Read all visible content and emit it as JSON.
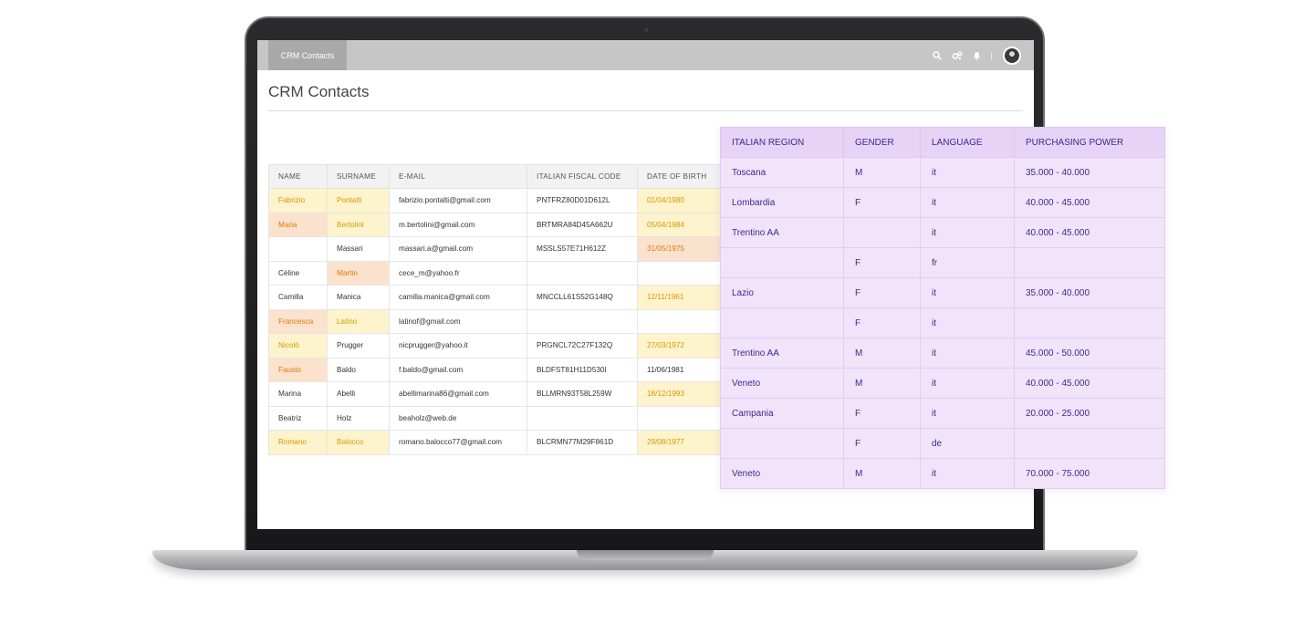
{
  "app": {
    "tab_label": "CRM Contacts",
    "page_title": "CRM Contacts",
    "icons": [
      "search-icon",
      "gears-icon",
      "bell-icon"
    ],
    "separator": "|"
  },
  "contacts": {
    "headers": [
      "NAME",
      "SURNAME",
      "E-MAIL",
      "ITALIAN FISCAL CODE",
      "DATE OF BIRTH"
    ],
    "rows": [
      {
        "name": "Fabrizio",
        "surname": "Pontalti",
        "email": "fabrizio.pontalti@gmail.com",
        "fiscal": "PNTFRZ80D01D612L",
        "dob": "01/04/1980",
        "hl": {
          "name": "y",
          "surname": "y",
          "dob": "y"
        }
      },
      {
        "name": "Maria",
        "surname": "Bertolini",
        "email": "m.bertolini@gmail.com",
        "fiscal": "BRTMRA84D45A662U",
        "dob": "05/04/1984",
        "hl": {
          "name": "o",
          "surname": "y",
          "dob": "y"
        }
      },
      {
        "name": "",
        "surname": "Massari",
        "email": "massari.a@gmail.com",
        "fiscal": "MSSLS57E71H612Z",
        "dob": "31/05/1975",
        "hl": {
          "dob": "o"
        }
      },
      {
        "name": "Céline",
        "surname": "Martin",
        "email": "cece_m@yahoo.fr",
        "fiscal": "",
        "dob": "",
        "hl": {
          "surname": "o"
        }
      },
      {
        "name": "Camilla",
        "surname": "Manica",
        "email": "camilla.manica@gmail.com",
        "fiscal": "MNCCLL61S52G148Q",
        "dob": "12/11/1961",
        "hl": {
          "dob": "y"
        }
      },
      {
        "name": "Francesca",
        "surname": "Latino",
        "email": "latinof@gmail.com",
        "fiscal": "",
        "dob": "",
        "hl": {
          "name": "o",
          "surname": "y"
        }
      },
      {
        "name": "Nicolò",
        "surname": "Prugger",
        "email": "nicprugger@yahoo.it",
        "fiscal": "PRGNCL72C27F132Q",
        "dob": "27/03/1972",
        "hl": {
          "name": "y",
          "dob": "y"
        }
      },
      {
        "name": "Fausto",
        "surname": "Baldo",
        "email": "f.baldo@gmail.com",
        "fiscal": "BLDFST81H11D530I",
        "dob": "11/06/1981",
        "hl": {
          "name": "o"
        }
      },
      {
        "name": "Marina",
        "surname": "Abelli",
        "email": "abellimarina86@gmail.com",
        "fiscal": "BLLMRN93T58L259W",
        "dob": "18/12/1993",
        "hl": {
          "dob": "y"
        }
      },
      {
        "name": "Beatriz",
        "surname": "Holz",
        "email": "beaholz@web.de",
        "fiscal": "",
        "dob": "",
        "hl": {}
      },
      {
        "name": "Romano",
        "surname": "Balocco",
        "email": "romano.balocco77@gmail.com",
        "fiscal": "BLCRMN77M29F861D",
        "dob": "29/08/1977",
        "hl": {
          "name": "y",
          "surname": "y",
          "dob": "y"
        }
      }
    ]
  },
  "enrichment": {
    "headers": [
      "ITALIAN REGION",
      "GENDER",
      "LANGUAGE",
      "PURCHASING POWER"
    ],
    "rows": [
      {
        "region": "Toscana",
        "gender": "M",
        "language": "it",
        "power": "35.000 - 40.000"
      },
      {
        "region": "Lombardia",
        "gender": "F",
        "language": "it",
        "power": "40.000 - 45.000"
      },
      {
        "region": "Trentino AA",
        "gender": "",
        "language": "it",
        "power": "40.000 - 45.000"
      },
      {
        "region": "",
        "gender": "F",
        "language": "fr",
        "power": ""
      },
      {
        "region": "Lazio",
        "gender": "F",
        "language": "it",
        "power": "35.000 - 40.000"
      },
      {
        "region": "",
        "gender": "F",
        "language": "it",
        "power": ""
      },
      {
        "region": "Trentino AA",
        "gender": "M",
        "language": "it",
        "power": "45.000 - 50.000"
      },
      {
        "region": "Veneto",
        "gender": "M",
        "language": "it",
        "power": "40.000 - 45.000"
      },
      {
        "region": "Campania",
        "gender": "F",
        "language": "it",
        "power": "20.000 - 25.000"
      },
      {
        "region": "",
        "gender": "F",
        "language": "de",
        "power": ""
      },
      {
        "region": "Veneto",
        "gender": "M",
        "language": "it",
        "power": "70.000 - 75.000"
      }
    ]
  }
}
